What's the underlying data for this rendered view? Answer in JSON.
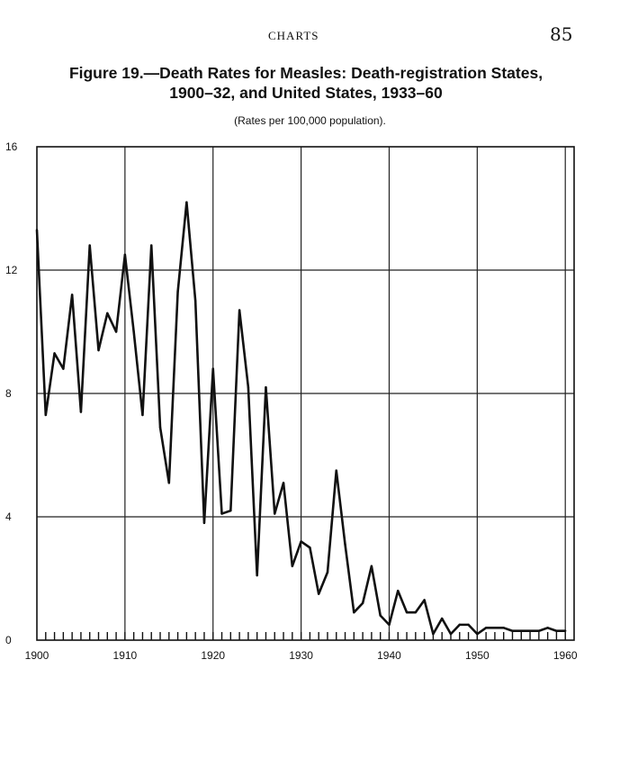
{
  "page": {
    "running_head": "CHARTS",
    "page_number": "85"
  },
  "figure": {
    "title_line1": "Figure 19.—Death Rates for Measles: Death-registration States,",
    "title_line2": "1900–32, and United States, 1933–60",
    "subtitle": "(Rates per 100,000 population)."
  },
  "chart_data": {
    "type": "line",
    "title": "Figure 19.—Death Rates for Measles: Death-registration States, 1900–32, and United States, 1933–60",
    "subtitle": "(Rates per 100,000 population).",
    "xlabel": "",
    "ylabel": "",
    "xlim": [
      1900,
      1961
    ],
    "ylim": [
      0,
      16
    ],
    "x_ticks": [
      "1900",
      "1910",
      "1920",
      "1930",
      "1940",
      "1950",
      "1960"
    ],
    "y_ticks": [
      "0",
      "4",
      "8",
      "12",
      "16"
    ],
    "grid": true,
    "series": [
      {
        "x": [
          1900,
          1901,
          1902,
          1903,
          1904,
          1905,
          1906,
          1907,
          1908,
          1909,
          1910,
          1911,
          1912,
          1913,
          1914,
          1915,
          1916,
          1917,
          1918,
          1919,
          1920,
          1921,
          1922,
          1923,
          1924,
          1925,
          1926,
          1927,
          1928,
          1929,
          1930,
          1931,
          1932,
          1933,
          1934,
          1935,
          1936,
          1937,
          1938,
          1939,
          1940,
          1941,
          1942,
          1943,
          1944,
          1945,
          1946,
          1947,
          1948,
          1949,
          1950,
          1951,
          1952,
          1953,
          1954,
          1955,
          1956,
          1957,
          1958,
          1959,
          1960
        ],
        "values": [
          13.3,
          7.3,
          9.3,
          8.8,
          11.2,
          7.4,
          12.8,
          9.4,
          10.6,
          10.0,
          12.5,
          10.0,
          7.3,
          12.8,
          6.9,
          5.1,
          11.3,
          14.2,
          11.0,
          3.8,
          8.8,
          4.1,
          4.2,
          10.7,
          8.2,
          2.1,
          8.2,
          4.1,
          5.1,
          2.4,
          3.2,
          3.0,
          1.5,
          2.2,
          5.5,
          3.1,
          0.9,
          1.2,
          2.4,
          0.8,
          0.5,
          1.6,
          0.9,
          0.9,
          1.3,
          0.2,
          0.7,
          0.2,
          0.5,
          0.5,
          0.2,
          0.4,
          0.4,
          0.4,
          0.3,
          0.3,
          0.3,
          0.3,
          0.4,
          0.3,
          0.3
        ]
      }
    ]
  }
}
